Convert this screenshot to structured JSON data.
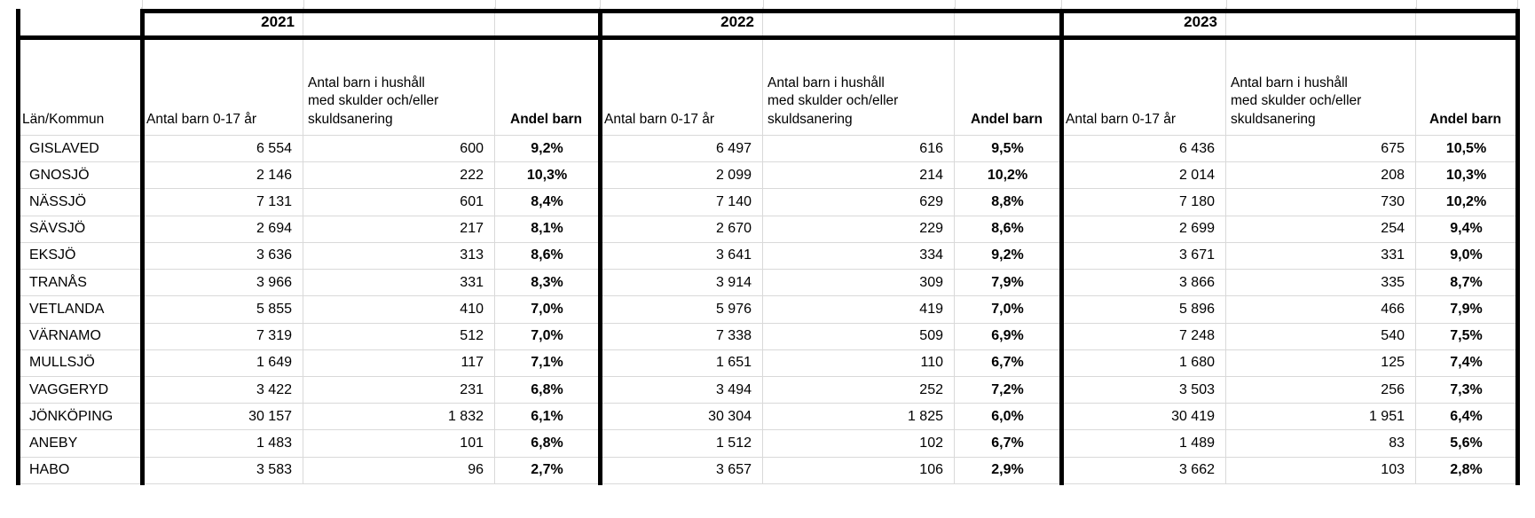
{
  "table": {
    "corner_header": "Län/Kommun",
    "years": [
      "2021",
      "2022",
      "2023"
    ],
    "col_headers": {
      "antal_barn": "Antal barn 0-17 år",
      "antal_skulder": "Antal barn i hushåll\nmed skulder och/eller\nskuldsanering",
      "andel": "Andel barn"
    },
    "rows": [
      {
        "kommun": "GISLAVED",
        "values": [
          "6 554",
          "600",
          "9,2%",
          "6 497",
          "616",
          "9,5%",
          "6 436",
          "675",
          "10,5%"
        ]
      },
      {
        "kommun": "GNOSJÖ",
        "values": [
          "2 146",
          "222",
          "10,3%",
          "2 099",
          "214",
          "10,2%",
          "2 014",
          "208",
          "10,3%"
        ]
      },
      {
        "kommun": "NÄSSJÖ",
        "values": [
          "7 131",
          "601",
          "8,4%",
          "7 140",
          "629",
          "8,8%",
          "7 180",
          "730",
          "10,2%"
        ]
      },
      {
        "kommun": "SÄVSJÖ",
        "values": [
          "2 694",
          "217",
          "8,1%",
          "2 670",
          "229",
          "8,6%",
          "2 699",
          "254",
          "9,4%"
        ]
      },
      {
        "kommun": "EKSJÖ",
        "values": [
          "3 636",
          "313",
          "8,6%",
          "3 641",
          "334",
          "9,2%",
          "3 671",
          "331",
          "9,0%"
        ]
      },
      {
        "kommun": "TRANÅS",
        "values": [
          "3 966",
          "331",
          "8,3%",
          "3 914",
          "309",
          "7,9%",
          "3 866",
          "335",
          "8,7%"
        ]
      },
      {
        "kommun": "VETLANDA",
        "values": [
          "5 855",
          "410",
          "7,0%",
          "5 976",
          "419",
          "7,0%",
          "5 896",
          "466",
          "7,9%"
        ]
      },
      {
        "kommun": "VÄRNAMO",
        "values": [
          "7 319",
          "512",
          "7,0%",
          "7 338",
          "509",
          "6,9%",
          "7 248",
          "540",
          "7,5%"
        ]
      },
      {
        "kommun": "MULLSJÖ",
        "values": [
          "1 649",
          "117",
          "7,1%",
          "1 651",
          "110",
          "6,7%",
          "1 680",
          "125",
          "7,4%"
        ]
      },
      {
        "kommun": "VAGGERYD",
        "values": [
          "3 422",
          "231",
          "6,8%",
          "3 494",
          "252",
          "7,2%",
          "3 503",
          "256",
          "7,3%"
        ]
      },
      {
        "kommun": "JÖNKÖPING",
        "values": [
          "30 157",
          "1 832",
          "6,1%",
          "30 304",
          "1 825",
          "6,0%",
          "30 419",
          "1 951",
          "6,4%"
        ]
      },
      {
        "kommun": "ANEBY",
        "values": [
          "1 483",
          "101",
          "6,8%",
          "1 512",
          "102",
          "6,7%",
          "1 489",
          "83",
          "5,6%"
        ]
      },
      {
        "kommun": "HABO",
        "values": [
          "3 583",
          "96",
          "2,7%",
          "3 657",
          "106",
          "2,9%",
          "3 662",
          "103",
          "2,8%"
        ]
      }
    ]
  },
  "colors": {
    "gridline": "#d9d9d9",
    "thick_border": "#000000",
    "background": "#ffffff",
    "text": "#000000"
  }
}
